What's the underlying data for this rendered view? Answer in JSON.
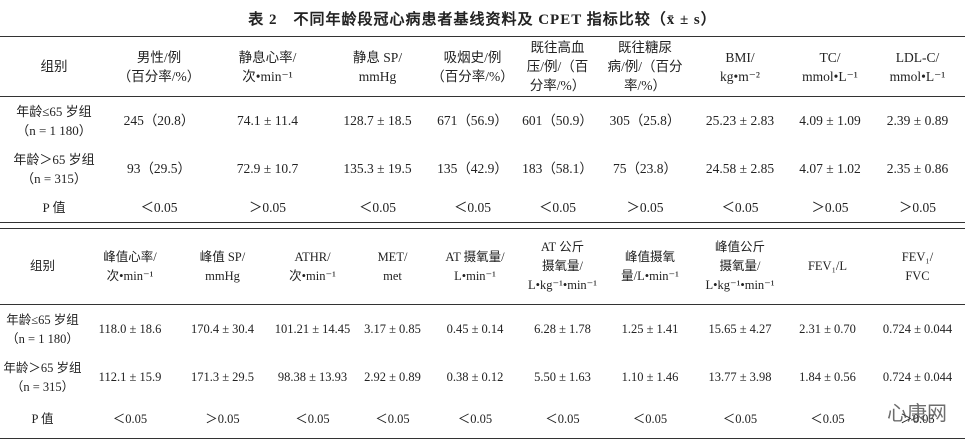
{
  "title": "表 2　不同年龄段冠心病患者基线资料及 CPET 指标比较（x̄ ± s）",
  "tables": [
    {
      "headers": [
        [
          "组别"
        ],
        [
          "男性/例",
          "（百分率/%）"
        ],
        [
          "静息心率/",
          "次•min⁻¹"
        ],
        [
          "静息 SP/",
          "mmHg"
        ],
        [
          "吸烟史/例",
          "（百分率/%）"
        ],
        [
          "既往高血",
          "压/例/（百",
          "分率/%）"
        ],
        [
          "既往糖尿",
          "病/例/（百分",
          "率/%）"
        ],
        [
          "BMI/",
          "kg•m⁻²"
        ],
        [
          "TC/",
          "mmol•L⁻¹"
        ],
        [
          "LDL-C/",
          "mmol•L⁻¹"
        ]
      ],
      "rows": [
        {
          "group": [
            "年龄≤65 岁组",
            "（n = 1 180）"
          ],
          "cells": [
            "245（20.8）",
            "74.1 ± 11.4",
            "128.7 ± 18.5",
            "671（56.9）",
            "601（50.9）",
            "305（25.8）",
            "25.23 ± 2.83",
            "4.09 ± 1.09",
            "2.39 ± 0.89"
          ]
        },
        {
          "group": [
            "年龄＞65 岁组",
            "（n = 315）"
          ],
          "cells": [
            "93（29.5）",
            "72.9 ± 10.7",
            "135.3 ± 19.5",
            "135（42.9）",
            "183（58.1）",
            "75（23.8）",
            "24.58 ± 2.85",
            "4.07 ± 1.02",
            "2.35 ± 0.86"
          ]
        },
        {
          "group": [
            "P 值"
          ],
          "cells": [
            "＜0.05",
            "＞0.05",
            "＜0.05",
            "＜0.05",
            "＜0.05",
            "＞0.05",
            "＜0.05",
            "＞0.05",
            "＞0.05"
          ]
        }
      ]
    },
    {
      "headers": [
        [
          "组别"
        ],
        [
          "峰值心率/",
          "次•min⁻¹"
        ],
        [
          "峰值 SP/",
          "mmHg"
        ],
        [
          "ATHR/",
          "次•min⁻¹"
        ],
        [
          "MET/",
          "met"
        ],
        [
          "AT 摄氧量/",
          "L•min⁻¹"
        ],
        [
          "AT 公斤",
          "摄氧量/",
          "L•kg⁻¹•min⁻¹"
        ],
        [
          "峰值摄氧",
          "量/L•min⁻¹"
        ],
        [
          "峰值公斤",
          "摄氧量/",
          "L•kg⁻¹•min⁻¹"
        ],
        [
          "FEV₁/L"
        ],
        [
          "FEV₁/",
          "FVC"
        ]
      ],
      "rows": [
        {
          "group": [
            "年龄≤65 岁组",
            "（n = 1 180）"
          ],
          "cells": [
            "118.0 ± 18.6",
            "170.4 ± 30.4",
            "101.21 ± 14.45",
            "3.17 ± 0.85",
            "0.45 ± 0.14",
            "6.28 ± 1.78",
            "1.25 ± 1.41",
            "15.65 ± 4.27",
            "2.31 ± 0.70",
            "0.724 ± 0.044"
          ]
        },
        {
          "group": [
            "年龄＞65 岁组",
            "（n = 315）"
          ],
          "cells": [
            "112.1 ± 15.9",
            "171.3 ± 29.5",
            "98.38 ± 13.93",
            "2.92 ± 0.89",
            "0.38 ± 0.12",
            "5.50 ± 1.63",
            "1.10 ± 1.46",
            "13.77 ± 3.98",
            "1.84 ± 0.56",
            "0.724 ± 0.044"
          ]
        },
        {
          "group": [
            "P 值"
          ],
          "cells": [
            "＜0.05",
            "＞0.05",
            "＜0.05",
            "＜0.05",
            "＜0.05",
            "＜0.05",
            "＜0.05",
            "＜0.05",
            "＜0.05",
            "＞0.05"
          ]
        }
      ]
    }
  ],
  "watermark": "心康网"
}
